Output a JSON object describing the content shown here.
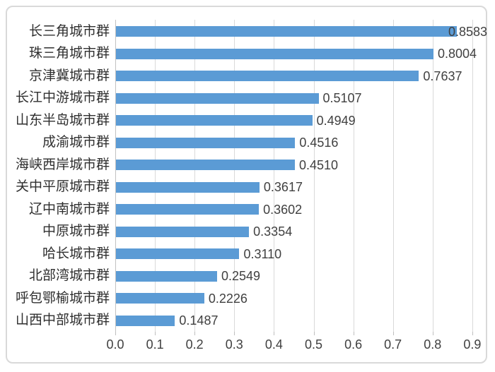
{
  "chart_data": {
    "type": "bar",
    "orientation": "horizontal",
    "title": "",
    "xlabel": "",
    "ylabel": "",
    "categories": [
      "长三角城市群",
      "珠三角城市群",
      "京津冀城市群",
      "长江中游城市群",
      "山东半岛城市群",
      "成渝城市群",
      "海峡西岸城市群",
      "关中平原城市群",
      "辽中南城市群",
      "中原城市群",
      "哈长城市群",
      "北部湾城市群",
      "呼包鄂榆城市群",
      "山西中部城市群"
    ],
    "values": [
      0.8583,
      0.8004,
      0.7637,
      0.5107,
      0.4949,
      0.4516,
      0.451,
      0.3617,
      0.3602,
      0.3354,
      0.311,
      0.2549,
      0.2226,
      0.1487
    ],
    "value_labels": [
      "0.8583",
      "0.8004",
      "0.7637",
      "0.5107",
      "0.4949",
      "0.4516",
      "0.4510",
      "0.3617",
      "0.3602",
      "0.3354",
      "0.3110",
      "0.2549",
      "0.2226",
      "0.1487"
    ],
    "x_ticks": [
      "0.0",
      "0.1",
      "0.2",
      "0.3",
      "0.4",
      "0.5",
      "0.6",
      "0.7",
      "0.8",
      "0.9"
    ],
    "xlim": [
      0.0,
      0.9
    ],
    "grid": "vertical",
    "legend": "none",
    "data_labels": "outside-end",
    "colors": {
      "bar": "#5b9bd5",
      "gridline": "#d9d9d9",
      "axis_line": "#c2c2c2",
      "text": "#404040",
      "border": "#d9d9d9",
      "background": "#ffffff"
    }
  }
}
